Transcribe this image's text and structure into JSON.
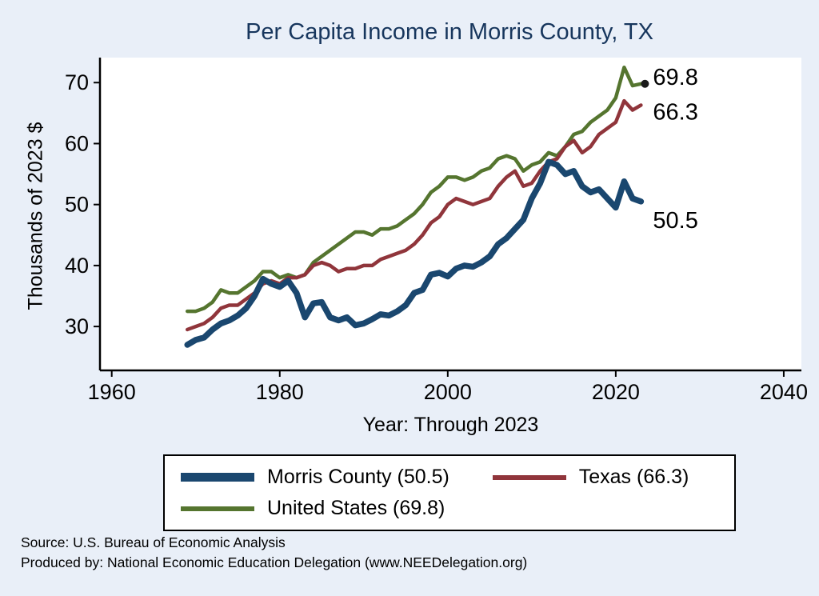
{
  "title": "Per Capita Income in Morris County, TX",
  "chart_data": {
    "type": "line",
    "title": "Per Capita Income in Morris County, TX",
    "xlabel": "Year: Through 2023",
    "ylabel": "Thousands of 2023 $",
    "x_ticks": [
      1960,
      1980,
      2000,
      2020,
      2040
    ],
    "y_ticks": [
      30,
      40,
      50,
      60,
      70
    ],
    "xlim": [
      1958.6,
      2042.1
    ],
    "ylim": [
      22.8,
      74.1
    ],
    "grid": false,
    "legend_position": "bottom",
    "x": [
      1969,
      1970,
      1971,
      1972,
      1973,
      1974,
      1975,
      1976,
      1977,
      1978,
      1979,
      1980,
      1981,
      1982,
      1983,
      1984,
      1985,
      1986,
      1987,
      1988,
      1989,
      1990,
      1991,
      1992,
      1993,
      1994,
      1995,
      1996,
      1997,
      1998,
      1999,
      2000,
      2001,
      2002,
      2003,
      2004,
      2005,
      2006,
      2007,
      2008,
      2009,
      2010,
      2011,
      2012,
      2013,
      2014,
      2015,
      2016,
      2017,
      2018,
      2019,
      2020,
      2021,
      2022,
      2023
    ],
    "series": [
      {
        "name": "Morris County",
        "legend_label": "Morris County (50.5)",
        "color": "#1a476f",
        "line_width": 7.5,
        "end_label": "50.5",
        "end_label_dy": 33,
        "end_marker": false,
        "values": [
          27.0,
          27.8,
          28.2,
          29.5,
          30.5,
          31.0,
          31.8,
          33.0,
          35.0,
          37.8,
          37.0,
          36.5,
          37.5,
          35.5,
          31.5,
          33.8,
          34.0,
          31.5,
          31.0,
          31.5,
          30.2,
          30.5,
          31.2,
          32.0,
          31.8,
          32.5,
          33.5,
          35.5,
          36.0,
          38.5,
          38.8,
          38.2,
          39.5,
          40.0,
          39.8,
          40.5,
          41.5,
          43.5,
          44.5,
          46.0,
          47.5,
          51.0,
          53.5,
          57.0,
          56.5,
          55.0,
          55.5,
          53.0,
          52.0,
          52.5,
          51.0,
          49.5,
          53.8,
          51.0,
          50.5
        ]
      },
      {
        "name": "Texas",
        "legend_label": "Texas (66.3)",
        "color": "#90353b",
        "line_width": 4.5,
        "end_label": "66.3",
        "end_label_dy": 18,
        "end_marker": false,
        "values": [
          29.5,
          30.0,
          30.5,
          31.5,
          33.0,
          33.5,
          33.5,
          34.5,
          35.5,
          37.0,
          37.5,
          37.0,
          38.0,
          38.0,
          38.5,
          40.0,
          40.5,
          40.0,
          39.0,
          39.5,
          39.5,
          40.0,
          40.0,
          41.0,
          41.5,
          42.0,
          42.5,
          43.5,
          45.0,
          47.0,
          48.0,
          50.0,
          51.0,
          50.5,
          50.0,
          50.5,
          51.0,
          53.0,
          54.5,
          55.5,
          53.0,
          53.5,
          55.5,
          57.0,
          57.5,
          59.5,
          60.5,
          58.5,
          59.5,
          61.5,
          62.5,
          63.5,
          67.0,
          65.5,
          66.3
        ]
      },
      {
        "name": "United States",
        "legend_label": "United States (69.8)",
        "color": "#55752f",
        "line_width": 4.5,
        "end_label": "69.8",
        "end_label_dy": 1,
        "end_marker": true,
        "values": [
          32.5,
          32.5,
          33.0,
          34.0,
          36.0,
          35.5,
          35.5,
          36.5,
          37.5,
          39.0,
          39.0,
          38.0,
          38.5,
          38.0,
          38.5,
          40.5,
          41.5,
          42.5,
          43.5,
          44.5,
          45.5,
          45.5,
          45.0,
          46.0,
          46.0,
          46.5,
          47.5,
          48.5,
          50.0,
          52.0,
          53.0,
          54.5,
          54.5,
          54.0,
          54.5,
          55.5,
          56.0,
          57.5,
          58.0,
          57.5,
          55.5,
          56.5,
          57.0,
          58.5,
          58.0,
          59.5,
          61.5,
          62.0,
          63.5,
          64.5,
          65.5,
          67.5,
          72.5,
          69.5,
          69.8
        ]
      }
    ]
  },
  "source": {
    "line1": "Source: U.S. Bureau of Economic Analysis",
    "line2": "Produced by: National Economic Education Delegation (www.NEEDelegation.org)"
  },
  "colors": {
    "background": "#e9eff8",
    "plot_background": "#ffffff",
    "title": "#17365d",
    "axis": "#000000",
    "morris_county": "#1a476f",
    "texas": "#90353b",
    "united_states": "#55752f"
  }
}
